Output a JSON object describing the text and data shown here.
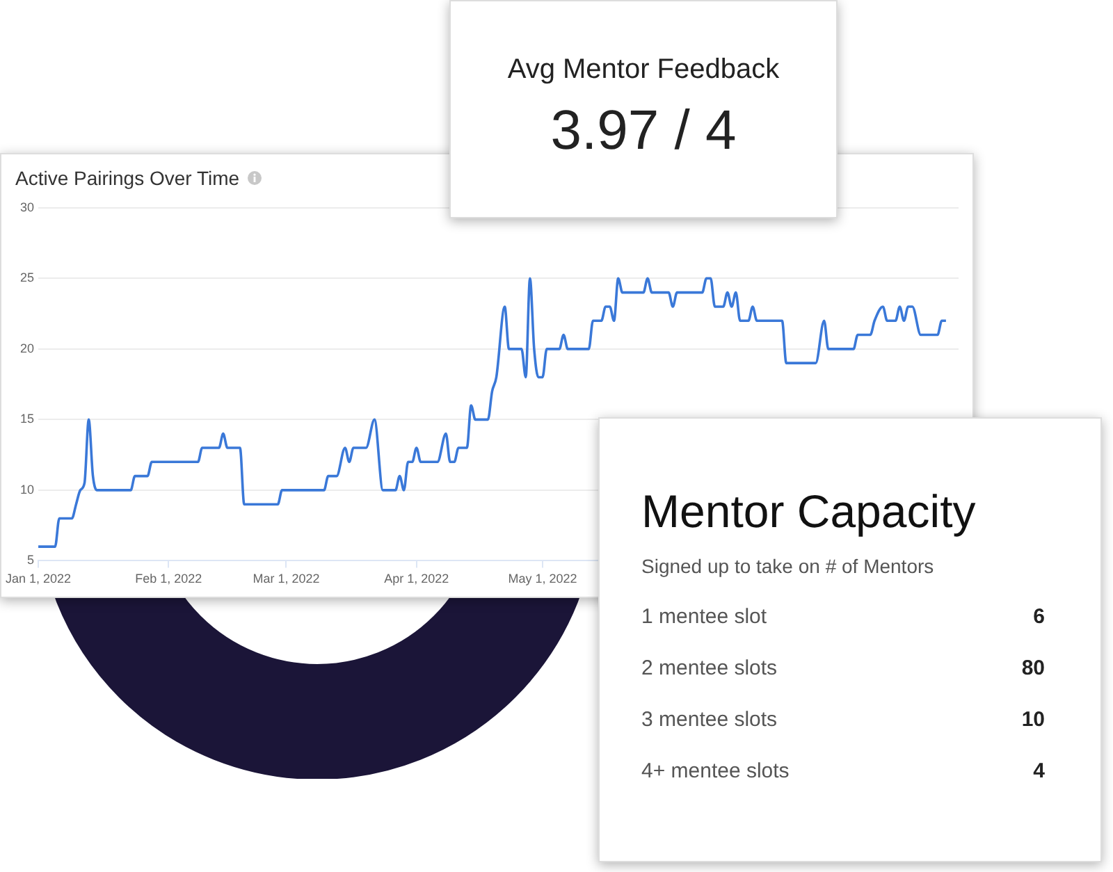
{
  "chart_data": [
    {
      "type": "other",
      "title": "Avg Mentor Feedback",
      "annotations": [
        "3.97 / 4"
      ]
    },
    {
      "type": "line",
      "title": "Active Pairings Over Time",
      "marker": "none",
      "line_style": "solid",
      "grid": "y",
      "legend": false,
      "xlim": [
        "2022-01-01",
        "2022-08-08"
      ],
      "ylim": [
        5,
        30
      ],
      "yticks": [
        5,
        10,
        15,
        20,
        25,
        30
      ],
      "xticks": [
        {
          "value": "2022-01-01",
          "label": "Jan 1, 2022"
        },
        {
          "value": "2022-02-01",
          "label": "Feb 1, 2022"
        },
        {
          "value": "2022-03-01",
          "label": "Mar 1, 2022"
        },
        {
          "value": "2022-04-01",
          "label": "Apr 1, 2022"
        },
        {
          "value": "2022-05-01",
          "label": "May 1, 2022"
        }
      ],
      "x": [
        "2022-01-01",
        "2022-01-05",
        "2022-01-06",
        "2022-01-09",
        "2022-01-10",
        "2022-01-11",
        "2022-01-12",
        "2022-01-13",
        "2022-01-14",
        "2022-01-15",
        "2022-01-23",
        "2022-01-24",
        "2022-01-27",
        "2022-01-28",
        "2022-02-08",
        "2022-02-09",
        "2022-02-13",
        "2022-02-14",
        "2022-02-15",
        "2022-02-18",
        "2022-02-19",
        "2022-02-27",
        "2022-02-28",
        "2022-03-10",
        "2022-03-11",
        "2022-03-13",
        "2022-03-15",
        "2022-03-16",
        "2022-03-17",
        "2022-03-20",
        "2022-03-22",
        "2022-03-24",
        "2022-03-27",
        "2022-03-28",
        "2022-03-29",
        "2022-03-30",
        "2022-03-31",
        "2022-04-01",
        "2022-04-02",
        "2022-04-06",
        "2022-04-08",
        "2022-04-09",
        "2022-04-10",
        "2022-04-11",
        "2022-04-13",
        "2022-04-14",
        "2022-04-15",
        "2022-04-18",
        "2022-04-19",
        "2022-04-20",
        "2022-04-22",
        "2022-04-23",
        "2022-04-26",
        "2022-04-27",
        "2022-04-28",
        "2022-04-29",
        "2022-04-30",
        "2022-05-01",
        "2022-05-02",
        "2022-05-05",
        "2022-05-06",
        "2022-05-07",
        "2022-05-12",
        "2022-05-13",
        "2022-05-15",
        "2022-05-16",
        "2022-05-17",
        "2022-05-18",
        "2022-05-19",
        "2022-05-20",
        "2022-05-25",
        "2022-05-26",
        "2022-05-27",
        "2022-05-31",
        "2022-06-01",
        "2022-06-02",
        "2022-06-08",
        "2022-06-09",
        "2022-06-10",
        "2022-06-11",
        "2022-06-13",
        "2022-06-14",
        "2022-06-15",
        "2022-06-16",
        "2022-06-17",
        "2022-06-19",
        "2022-06-20",
        "2022-06-21",
        "2022-06-27",
        "2022-06-28",
        "2022-07-05",
        "2022-07-07",
        "2022-07-08",
        "2022-07-14",
        "2022-07-15",
        "2022-07-18",
        "2022-07-19",
        "2022-07-21",
        "2022-07-22",
        "2022-07-24",
        "2022-07-25",
        "2022-07-26",
        "2022-07-27",
        "2022-07-28",
        "2022-07-30",
        "2022-08-03",
        "2022-08-04",
        "2022-08-05"
      ],
      "series": [
        {
          "color": "#3a78d8",
          "values": [
            6,
            6,
            8,
            8,
            9,
            10,
            10.5,
            15,
            11,
            10,
            10,
            11,
            11,
            12,
            12,
            13,
            13,
            14,
            13,
            13,
            9,
            9,
            10,
            10,
            11,
            11,
            13,
            12,
            13,
            13,
            15,
            10,
            10,
            11,
            10,
            12,
            12,
            13,
            12,
            12,
            14,
            12,
            12,
            13,
            13,
            16,
            15,
            15,
            17,
            18,
            23,
            20,
            20,
            18,
            25,
            20,
            18,
            18,
            20,
            20,
            21,
            20,
            20,
            22,
            22,
            23,
            23,
            22,
            25,
            24,
            24,
            25,
            24,
            24,
            23,
            24,
            24,
            25,
            25,
            23,
            23,
            24,
            23,
            24,
            22,
            22,
            23,
            22,
            22,
            19,
            19,
            22,
            20,
            20,
            21,
            21,
            22,
            23,
            22,
            22,
            23,
            22,
            23,
            23,
            21,
            21,
            22,
            22
          ]
        }
      ]
    },
    {
      "type": "other",
      "title": "Mentor Capacity",
      "subtitle": "Signed up to take on # of Mentors",
      "categories": [
        "1 mentee slot",
        "2 mentee slots",
        "3 mentee slots",
        "4+ mentee slots"
      ],
      "values": [
        6,
        80,
        10,
        4
      ],
      "data_labels": true
    }
  ]
}
